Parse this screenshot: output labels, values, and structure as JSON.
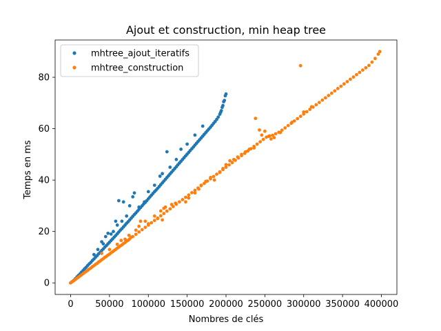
{
  "chart_data": {
    "type": "scatter",
    "title": "Ajout et construction, min heap tree",
    "xlabel": "Nombres de clés",
    "ylabel": "Temps en ms",
    "xlim": [
      -20000,
      420000
    ],
    "ylim": [
      -4.5,
      94.5
    ],
    "xticks": [
      0,
      50000,
      100000,
      150000,
      200000,
      250000,
      300000,
      350000,
      400000
    ],
    "yticks": [
      0,
      20,
      40,
      60,
      80
    ],
    "grid": false,
    "legend_position": "top-left",
    "series": [
      {
        "name": "mhtree_ajout_iteratifs",
        "color": "#1f77b4",
        "points": [
          [
            0,
            0
          ],
          [
            2000,
            0.5
          ],
          [
            4000,
            1.0
          ],
          [
            6000,
            1.6
          ],
          [
            8000,
            2.3
          ],
          [
            10000,
            2.9
          ],
          [
            12000,
            3.5
          ],
          [
            14000,
            4.2
          ],
          [
            16000,
            4.8
          ],
          [
            18000,
            5.5
          ],
          [
            20000,
            6.1
          ],
          [
            22000,
            6.8
          ],
          [
            24000,
            7.4
          ],
          [
            26000,
            8.0
          ],
          [
            28000,
            8.7
          ],
          [
            30000,
            9.3
          ],
          [
            32000,
            10.0
          ],
          [
            34000,
            10.6
          ],
          [
            36000,
            11.3
          ],
          [
            38000,
            11.9
          ],
          [
            40000,
            12.6
          ],
          [
            42000,
            13.2
          ],
          [
            44000,
            13.9
          ],
          [
            46000,
            14.5
          ],
          [
            48000,
            15.2
          ],
          [
            50000,
            15.8
          ],
          [
            52000,
            16.5
          ],
          [
            54000,
            17.1
          ],
          [
            56000,
            17.8
          ],
          [
            58000,
            18.4
          ],
          [
            60000,
            19.1
          ],
          [
            62000,
            19.8
          ],
          [
            64000,
            20.5
          ],
          [
            66000,
            21.1
          ],
          [
            68000,
            21.8
          ],
          [
            70000,
            22.5
          ],
          [
            72000,
            23.2
          ],
          [
            74000,
            23.8
          ],
          [
            76000,
            24.5
          ],
          [
            78000,
            25.2
          ],
          [
            80000,
            25.9
          ],
          [
            82000,
            26.6
          ],
          [
            84000,
            27.2
          ],
          [
            86000,
            27.9
          ],
          [
            88000,
            28.6
          ],
          [
            90000,
            29.3
          ],
          [
            92000,
            30.0
          ],
          [
            94000,
            30.7
          ],
          [
            96000,
            31.3
          ],
          [
            98000,
            32.0
          ],
          [
            100000,
            32.7
          ],
          [
            102000,
            33.4
          ],
          [
            104000,
            34.1
          ],
          [
            106000,
            34.8
          ],
          [
            108000,
            35.5
          ],
          [
            110000,
            36.1
          ],
          [
            112000,
            36.8
          ],
          [
            114000,
            37.5
          ],
          [
            116000,
            38.2
          ],
          [
            118000,
            38.9
          ],
          [
            120000,
            39.6
          ],
          [
            122000,
            40.3
          ],
          [
            124000,
            41.0
          ],
          [
            126000,
            41.7
          ],
          [
            128000,
            42.4
          ],
          [
            130000,
            43.1
          ],
          [
            132000,
            43.8
          ],
          [
            134000,
            44.5
          ],
          [
            136000,
            45.2
          ],
          [
            138000,
            45.9
          ],
          [
            140000,
            46.6
          ],
          [
            142000,
            47.3
          ],
          [
            144000,
            48.0
          ],
          [
            146000,
            48.7
          ],
          [
            148000,
            49.4
          ],
          [
            150000,
            50.1
          ],
          [
            152000,
            50.8
          ],
          [
            154000,
            51.5
          ],
          [
            156000,
            52.2
          ],
          [
            158000,
            52.9
          ],
          [
            160000,
            53.6
          ],
          [
            162000,
            54.3
          ],
          [
            164000,
            55.0
          ],
          [
            166000,
            55.7
          ],
          [
            168000,
            56.4
          ],
          [
            170000,
            57.1
          ],
          [
            172000,
            57.8
          ],
          [
            174000,
            58.5
          ],
          [
            176000,
            59.2
          ],
          [
            178000,
            59.9
          ],
          [
            180000,
            60.6
          ],
          [
            182000,
            61.3
          ],
          [
            184000,
            62.1
          ],
          [
            186000,
            62.8
          ],
          [
            188000,
            63.6
          ],
          [
            190000,
            64.5
          ],
          [
            192000,
            65.6
          ],
          [
            194000,
            67.0
          ],
          [
            196000,
            69.0
          ],
          [
            198000,
            71.0
          ],
          [
            200000,
            73.5
          ],
          [
            199000,
            72.8
          ],
          [
            197000,
            70.5
          ],
          [
            195000,
            68.3
          ],
          [
            193000,
            66.3
          ],
          [
            30000,
            11.0
          ],
          [
            35000,
            13.0
          ],
          [
            40000,
            16.0
          ],
          [
            42000,
            15.2
          ],
          [
            45000,
            18.0
          ],
          [
            48000,
            19.3
          ],
          [
            52000,
            19.0
          ],
          [
            55000,
            20.0
          ],
          [
            58000,
            24.0
          ],
          [
            60000,
            22.5
          ],
          [
            62000,
            32.0
          ],
          [
            66000,
            24.0
          ],
          [
            68000,
            31.5
          ],
          [
            72000,
            26.0
          ],
          [
            76000,
            30.0
          ],
          [
            80000,
            33.5
          ],
          [
            82000,
            35.0
          ],
          [
            88000,
            29.5
          ],
          [
            95000,
            31.5
          ],
          [
            100000,
            35.5
          ],
          [
            108000,
            38.0
          ],
          [
            115000,
            41.5
          ],
          [
            118000,
            42.5
          ],
          [
            124000,
            51.0
          ],
          [
            128000,
            45.0
          ],
          [
            136000,
            48.0
          ],
          [
            142000,
            52.0
          ],
          [
            150000,
            54.0
          ],
          [
            160000,
            57.5
          ],
          [
            170000,
            61.0
          ]
        ]
      },
      {
        "name": "mhtree_construction",
        "color": "#ff7f0e",
        "points": [
          [
            0,
            0
          ],
          [
            4000,
            0.9
          ],
          [
            8000,
            1.8
          ],
          [
            12000,
            2.7
          ],
          [
            16000,
            3.6
          ],
          [
            20000,
            4.5
          ],
          [
            24000,
            5.4
          ],
          [
            28000,
            6.3
          ],
          [
            32000,
            7.2
          ],
          [
            36000,
            8.1
          ],
          [
            40000,
            9.0
          ],
          [
            44000,
            9.9
          ],
          [
            48000,
            10.8
          ],
          [
            52000,
            11.7
          ],
          [
            56000,
            12.6
          ],
          [
            60000,
            13.5
          ],
          [
            64000,
            14.4
          ],
          [
            68000,
            15.3
          ],
          [
            72000,
            16.2
          ],
          [
            76000,
            17.1
          ],
          [
            80000,
            18.0
          ],
          [
            84000,
            18.9
          ],
          [
            88000,
            19.8
          ],
          [
            92000,
            20.7
          ],
          [
            96000,
            21.6
          ],
          [
            100000,
            22.5
          ],
          [
            104000,
            23.4
          ],
          [
            108000,
            24.3
          ],
          [
            112000,
            25.2
          ],
          [
            116000,
            26.1
          ],
          [
            120000,
            27.0
          ],
          [
            124000,
            27.9
          ],
          [
            128000,
            28.8
          ],
          [
            132000,
            29.7
          ],
          [
            136000,
            30.6
          ],
          [
            140000,
            31.5
          ],
          [
            144000,
            32.4
          ],
          [
            148000,
            33.3
          ],
          [
            152000,
            34.2
          ],
          [
            156000,
            35.1
          ],
          [
            160000,
            36.0
          ],
          [
            164000,
            36.9
          ],
          [
            168000,
            37.8
          ],
          [
            172000,
            38.7
          ],
          [
            176000,
            39.6
          ],
          [
            180000,
            40.5
          ],
          [
            184000,
            41.4
          ],
          [
            188000,
            42.3
          ],
          [
            192000,
            43.2
          ],
          [
            196000,
            44.1
          ],
          [
            200000,
            45.0
          ],
          [
            204000,
            45.9
          ],
          [
            208000,
            46.8
          ],
          [
            212000,
            47.7
          ],
          [
            216000,
            48.6
          ],
          [
            220000,
            49.5
          ],
          [
            224000,
            50.4
          ],
          [
            228000,
            51.3
          ],
          [
            232000,
            52.2
          ],
          [
            236000,
            53.1
          ],
          [
            240000,
            54.0
          ],
          [
            244000,
            54.9
          ],
          [
            248000,
            55.8
          ],
          [
            252000,
            56.7
          ],
          [
            256000,
            57.2
          ],
          [
            260000,
            57.4
          ],
          [
            264000,
            58.0
          ],
          [
            268000,
            58.6
          ],
          [
            272000,
            59.4
          ],
          [
            276000,
            60.3
          ],
          [
            280000,
            61.2
          ],
          [
            284000,
            62.1
          ],
          [
            288000,
            63.0
          ],
          [
            292000,
            63.9
          ],
          [
            296000,
            64.8
          ],
          [
            300000,
            65.7
          ],
          [
            304000,
            66.6
          ],
          [
            308000,
            67.5
          ],
          [
            312000,
            68.4
          ],
          [
            316000,
            69.3
          ],
          [
            320000,
            70.2
          ],
          [
            324000,
            71.1
          ],
          [
            328000,
            72.0
          ],
          [
            332000,
            72.9
          ],
          [
            336000,
            73.8
          ],
          [
            340000,
            74.7
          ],
          [
            344000,
            75.6
          ],
          [
            348000,
            76.5
          ],
          [
            352000,
            77.4
          ],
          [
            356000,
            78.3
          ],
          [
            360000,
            79.2
          ],
          [
            364000,
            80.1
          ],
          [
            368000,
            81.0
          ],
          [
            372000,
            81.9
          ],
          [
            376000,
            82.8
          ],
          [
            380000,
            83.7
          ],
          [
            384000,
            84.6
          ],
          [
            388000,
            85.9
          ],
          [
            392000,
            87.3
          ],
          [
            396000,
            89.0
          ],
          [
            398000,
            90.0
          ],
          [
            2000,
            0.5
          ],
          [
            6000,
            1.3
          ],
          [
            10000,
            2.2
          ],
          [
            14000,
            3.1
          ],
          [
            18000,
            4.0
          ],
          [
            22000,
            4.9
          ],
          [
            26000,
            5.8
          ],
          [
            30000,
            6.7
          ],
          [
            34000,
            7.6
          ],
          [
            38000,
            8.5
          ],
          [
            42000,
            9.4
          ],
          [
            46000,
            10.3
          ],
          [
            50000,
            11.2
          ],
          [
            54000,
            12.1
          ],
          [
            58000,
            13.0
          ],
          [
            62000,
            13.9
          ],
          [
            66000,
            14.8
          ],
          [
            70000,
            15.7
          ],
          [
            74000,
            16.6
          ],
          [
            40000,
            11.5
          ],
          [
            50000,
            13.0
          ],
          [
            60000,
            15.0
          ],
          [
            65000,
            16.5
          ],
          [
            70000,
            17.0
          ],
          [
            75000,
            18.5
          ],
          [
            78000,
            17.8
          ],
          [
            84000,
            20.5
          ],
          [
            88000,
            22.0
          ],
          [
            90000,
            24.0
          ],
          [
            96000,
            24.0
          ],
          [
            100000,
            23.0
          ],
          [
            108000,
            26.0
          ],
          [
            112000,
            25.0
          ],
          [
            116000,
            28.0
          ],
          [
            118000,
            24.5
          ],
          [
            120000,
            29.0
          ],
          [
            122000,
            29.5
          ],
          [
            130000,
            30.5
          ],
          [
            135000,
            31.0
          ],
          [
            148000,
            31.5
          ],
          [
            152000,
            33.0
          ],
          [
            160000,
            35.0
          ],
          [
            165000,
            36.5
          ],
          [
            168000,
            38.0
          ],
          [
            174000,
            39.5
          ],
          [
            180000,
            41.0
          ],
          [
            185000,
            40.0
          ],
          [
            192000,
            43.0
          ],
          [
            196000,
            44.5
          ],
          [
            200000,
            46.0
          ],
          [
            205000,
            47.5
          ],
          [
            210000,
            48.0
          ],
          [
            215000,
            49.0
          ],
          [
            220000,
            50.0
          ],
          [
            225000,
            51.0
          ],
          [
            230000,
            52.0
          ],
          [
            236000,
            52.5
          ],
          [
            238000,
            64.0
          ],
          [
            243000,
            59.5
          ],
          [
            246000,
            57.5
          ],
          [
            250000,
            59.0
          ],
          [
            255000,
            57.0
          ],
          [
            258000,
            56.0
          ],
          [
            262000,
            56.5
          ],
          [
            270000,
            58.5
          ],
          [
            285000,
            62.5
          ],
          [
            296000,
            84.5
          ],
          [
            300000,
            66.5
          ],
          [
            310000,
            68.5
          ]
        ]
      }
    ]
  }
}
